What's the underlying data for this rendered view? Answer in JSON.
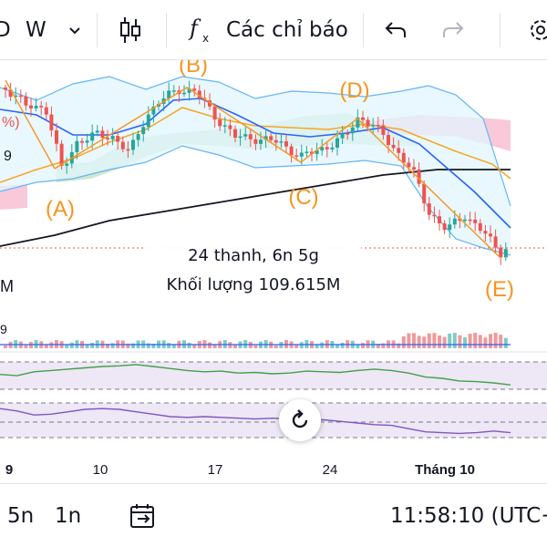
{
  "toolbar": {
    "partial_interval": "D",
    "interval": "W",
    "indicators_label": "Các chỉ báo"
  },
  "icons": [
    "chevron-down-icon",
    "candles-icon",
    "fx-icon",
    "undo-icon",
    "redo-icon",
    "gear-icon",
    "reset-icon",
    "calendar-range-icon"
  ],
  "tooltip": {
    "bars": "24 thanh, 6n 5g",
    "volume": "Khối lượng 109.615M"
  },
  "left_edge_labels": {
    "pct": "%)",
    "nine_top": "9",
    "m_label": "M",
    "nine_vol": "9"
  },
  "bottom_bar": {
    "range_5": "5n",
    "range_1": "1n",
    "clock": "11:58:10 (UTC+"
  },
  "colors": {
    "up": "#26a69a",
    "down": "#ef5350",
    "wave": "#f7941d",
    "ema_fast": "#2962ff",
    "ema_slow": "#f5a623",
    "ma_long": "#131722",
    "kumo_bull": "#a5d6a7",
    "kumo_bear": "#f8bbd0",
    "rsi": "#43a047",
    "stoch": "#7e57c2",
    "band_fill": "#e1f5fe"
  },
  "chart_data": {
    "type": "candlestick",
    "x_ticks": [
      "9",
      "10",
      "17",
      "24",
      "Tháng 10"
    ],
    "wave_labels": [
      "(A)",
      "(B)",
      "(C)",
      "(D)",
      "(E)"
    ],
    "series": [
      {
        "values": [
          0.62,
          0.58,
          0.7,
          0.74,
          0.78,
          0.82,
          0.86,
          0.88,
          0.92,
          0.86,
          0.8,
          0.74,
          0.7,
          0.72,
          0.66,
          0.68,
          0.64,
          0.66,
          0.72,
          0.7,
          0.68,
          0.74,
          0.78,
          0.74,
          0.66,
          0.54,
          0.5,
          0.42,
          0.4,
          0.36,
          0.3
        ]
      },
      {
        "values": [
          0.86,
          0.8,
          0.7,
          0.72,
          0.78,
          0.84,
          0.86,
          0.84,
          0.78,
          0.72,
          0.66,
          0.64,
          0.66,
          0.64,
          0.62,
          0.6,
          0.62,
          0.6,
          0.56,
          0.58,
          0.54,
          0.5,
          0.46,
          0.44,
          0.36,
          0.28,
          0.26,
          0.24,
          0.26,
          0.3,
          0.26
        ]
      }
    ]
  }
}
